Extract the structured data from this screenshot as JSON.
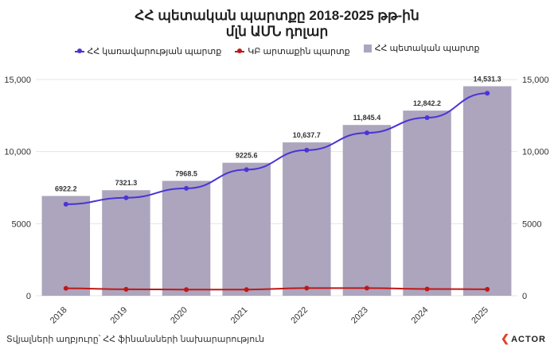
{
  "title_line1": "ՀՀ պետական պարտքը 2018-2025 թթ-ին",
  "title_line2": "մլն ԱՄՆ դոլար",
  "footer": "Տվյալների աղբյուրը՝ ՀՀ ֆինանսների նախարարություն",
  "logo_text": "ACTOR",
  "colors": {
    "bar": "#aca5bd",
    "line_gov": "#4b34d6",
    "line_cb": "#c01818",
    "logo_accent": "#e0402a"
  },
  "chart_data": {
    "type": "bar",
    "categories": [
      "2018",
      "2019",
      "2020",
      "2021",
      "2022",
      "2023",
      "2024",
      "2025"
    ],
    "series": [
      {
        "name": "ՀՀ պետական պարտք",
        "kind": "bar",
        "color": "#aca5bd",
        "values": [
          6922.2,
          7321.3,
          7968.5,
          9225.6,
          10637.7,
          11845.4,
          12842.2,
          14531.3
        ],
        "labels": [
          "6922.2",
          "7321.3",
          "7968.5",
          "9225.6",
          "10,637.7",
          "11,845.4",
          "12,842.2",
          "14,531.3"
        ]
      },
      {
        "name": "ՀՀ կառավարության պարտք",
        "kind": "line",
        "color": "#4b34d6",
        "values": [
          6350,
          6800,
          7450,
          8750,
          10100,
          11300,
          12350,
          14050
        ]
      },
      {
        "name": "ԿԲ արտաքին պարտք",
        "kind": "line",
        "color": "#c01818",
        "values": [
          520,
          450,
          430,
          430,
          530,
          530,
          470,
          450
        ]
      }
    ],
    "ylim": [
      0,
      15000
    ],
    "yticks": [
      "0",
      "5000",
      "10,000",
      "15,000"
    ],
    "ytick_values": [
      0,
      5000,
      10000,
      15000
    ],
    "grid": true,
    "legend_position": "top"
  }
}
